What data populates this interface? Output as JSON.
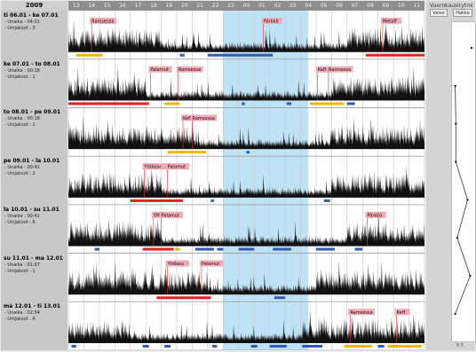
{
  "year": "2009",
  "hours": [
    "13",
    "14",
    "15",
    "16",
    "17",
    "18",
    "19",
    "20",
    "21",
    "22",
    "23",
    "00",
    "01",
    "02",
    "03",
    "04",
    "05",
    "06",
    "07",
    "08",
    "09",
    "10",
    "11"
  ],
  "stats_labels": {
    "awake": "Unaika",
    "wakeups": "Unijaksot"
  },
  "days": [
    {
      "title": "ti 06.01 - ke 07.01",
      "awake": "04:01",
      "wakeups": "3",
      "seed": 11,
      "night_start": 6,
      "night_end": 18,
      "events": [
        {
          "label": "Ramsessa",
          "x": 1.5
        },
        {
          "label": "Pärkkä",
          "x": 12.6
        },
        {
          "label": "Metaff",
          "x": 20.3
        }
      ],
      "bars": [
        {
          "s": 0.5,
          "e": 2.2,
          "c": "#f5b400"
        },
        {
          "s": 7.2,
          "e": 7.5,
          "c": "#2f5bb7"
        },
        {
          "s": 9.0,
          "e": 13.2,
          "c": "#2f5bb7"
        },
        {
          "s": 19.2,
          "e": 23,
          "c": "#e82020"
        }
      ]
    },
    {
      "title": "ke 07.01 - to 08.01",
      "awake": "00:28",
      "wakeups": "1",
      "seed": 23,
      "night_start": 5,
      "night_end": 17,
      "events": [
        {
          "label": "Palamut",
          "x": 5.3
        },
        {
          "label": "Ramsessa",
          "x": 7.1
        },
        {
          "label": "Keff",
          "x": 16.1
        },
        {
          "label": "Ramsessa",
          "x": 16.8
        }
      ],
      "bars": [
        {
          "s": 0,
          "e": 5.2,
          "c": "#e82020"
        },
        {
          "s": 6.2,
          "e": 7.2,
          "c": "#f5b400"
        },
        {
          "s": 11.2,
          "e": 11.4,
          "c": "#2f5bb7"
        },
        {
          "s": 14.1,
          "e": 14.4,
          "c": "#2f5bb7"
        },
        {
          "s": 15.6,
          "e": 17.8,
          "c": "#f5b400"
        },
        {
          "s": 18.0,
          "e": 18.5,
          "c": "#2f5bb7"
        }
      ]
    },
    {
      "title": "to 08.01 - pe 09.01",
      "awake": "00:18",
      "wakeups": "1",
      "seed": 37,
      "night_start": 8,
      "night_end": 17,
      "events": [
        {
          "label": "Keff",
          "x": 7.4
        },
        {
          "label": "Ramsessa",
          "x": 8.0
        }
      ],
      "bars": [
        {
          "s": 6.4,
          "e": 8.9,
          "c": "#f5b400"
        },
        {
          "s": 11.5,
          "e": 11.7,
          "c": "#2f5bb7"
        }
      ]
    },
    {
      "title": "pe 09.01 - la 10.01",
      "awake": "00:41",
      "wakeups": "2",
      "seed": 53,
      "night_start": 6,
      "night_end": 17,
      "events": [
        {
          "label": "Ytdlasu",
          "x": 4.9
        },
        {
          "label": "Palamut",
          "x": 6.4
        }
      ],
      "bars": [
        {
          "s": 4.0,
          "e": 7.4,
          "c": "#e82020"
        },
        {
          "s": 9.2,
          "e": 9.4,
          "c": "#2f5bb7"
        },
        {
          "s": 16.5,
          "e": 16.9,
          "c": "#2f5bb7"
        }
      ]
    },
    {
      "title": "la 10.01 - su 11.01",
      "awake": "00:41",
      "wakeups": "6",
      "seed": 71,
      "night_start": 6,
      "night_end": 18,
      "events": [
        {
          "label": "YM",
          "x": 5.5
        },
        {
          "label": "Palamut",
          "x": 6.0
        },
        {
          "label": "Pärkkä",
          "x": 19.3
        }
      ],
      "bars": [
        {
          "s": 1.7,
          "e": 2.0,
          "c": "#2f5bb7"
        },
        {
          "s": 4.8,
          "e": 6.8,
          "c": "#e82020"
        },
        {
          "s": 6.9,
          "e": 7.2,
          "c": "#f5b400"
        },
        {
          "s": 8.2,
          "e": 9.4,
          "c": "#2f5bb7"
        },
        {
          "s": 9.6,
          "e": 10.0,
          "c": "#2f5bb7"
        },
        {
          "s": 11.0,
          "e": 12.0,
          "c": "#2f5bb7"
        },
        {
          "s": 13.2,
          "e": 14.4,
          "c": "#2f5bb7"
        },
        {
          "s": 16.0,
          "e": 17.2,
          "c": "#2f5bb7"
        },
        {
          "s": 18.5,
          "e": 19.0,
          "c": "#2f5bb7"
        }
      ]
    },
    {
      "title": "su 11.01 - ma 12.01",
      "awake": "01:07",
      "wakeups": "1",
      "seed": 89,
      "night_start": 9,
      "night_end": 16,
      "events": [
        {
          "label": "Ytdlasu",
          "x": 6.4
        },
        {
          "label": "Palamut",
          "x": 8.6
        }
      ],
      "bars": [
        {
          "s": 5.7,
          "e": 9.2,
          "c": "#e82020"
        },
        {
          "s": 13.3,
          "e": 14.0,
          "c": "#2f5bb7"
        }
      ]
    },
    {
      "title": "ma 12.01 - ti 13.01",
      "awake": "02:54",
      "wakeups": "4",
      "seed": 97,
      "night_start": 4,
      "night_end": 15,
      "events": [
        {
          "label": "Ramsessa",
          "x": 18.2
        },
        {
          "label": "Keff",
          "x": 21.2
        }
      ],
      "bars": [
        {
          "s": 0.2,
          "e": 0.5,
          "c": "#2f5bb7"
        },
        {
          "s": 4.8,
          "e": 5.2,
          "c": "#2f5bb7"
        },
        {
          "s": 6.2,
          "e": 6.6,
          "c": "#2f5bb7"
        },
        {
          "s": 9.3,
          "e": 9.6,
          "c": "#2f5bb7"
        },
        {
          "s": 11.8,
          "e": 12.2,
          "c": "#2f5bb7"
        },
        {
          "s": 13.0,
          "e": 14.1,
          "c": "#2f5bb7"
        },
        {
          "s": 15.1,
          "e": 16.4,
          "c": "#2f5bb7"
        },
        {
          "s": 17.8,
          "e": 19.6,
          "c": "#f5b400"
        },
        {
          "s": 20.0,
          "e": 20.4,
          "c": "#2f5bb7"
        },
        {
          "s": 20.6,
          "e": 22.8,
          "c": "#f5b400"
        }
      ]
    }
  ],
  "highlight": {
    "start": 10.0,
    "end": 15.5,
    "color": "#bfe3f6"
  },
  "colors": {
    "activity": "#111111",
    "event_line": "#e03030",
    "event_label_bg": "#f6a9b4"
  },
  "sidepanel": {
    "title": "Vuorokausirytmi",
    "buttons": [
      {
        "label": "Valvo"
      },
      {
        "label": "Hakko"
      }
    ],
    "scale_label": "0.5",
    "marker_values": [
      0.95,
      0.12,
      0.15,
      0.15,
      0.75,
      0.22,
      0.88,
      0.12
    ]
  }
}
